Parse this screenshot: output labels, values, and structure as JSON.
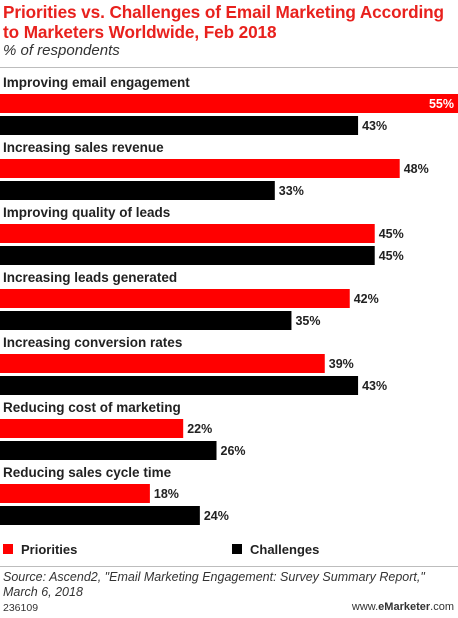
{
  "header": {
    "title": "Priorities vs. Challenges of Email Marketing According to Marketers Worldwide, Feb 2018",
    "subtitle": "% of respondents"
  },
  "legend": {
    "priorities_label": "Priorities",
    "challenges_label": "Challenges"
  },
  "footer": {
    "source": "Source: Ascend2, \"Email Marketing Engagement: Survey Summary Report,\" March 6, 2018",
    "chart_id": "236109",
    "brand_prefix": "www.",
    "brand_name": "eMarketer",
    "brand_suffix": ".com"
  },
  "colors": {
    "priorities": "#ff0000",
    "challenges": "#000000",
    "title": "#e8211d"
  },
  "chart_data": {
    "type": "bar",
    "orientation": "horizontal",
    "title": "Priorities vs. Challenges of Email Marketing According to Marketers Worldwide, Feb 2018",
    "subtitle": "% of respondents",
    "unit": "%",
    "xlim": [
      0,
      55
    ],
    "grid": false,
    "legend_position": "bottom",
    "categories": [
      "Improving email engagement",
      "Increasing sales revenue",
      "Improving quality of leads",
      "Increasing leads generated",
      "Increasing conversion rates",
      "Reducing cost of marketing",
      "Reducing sales cycle time"
    ],
    "series": [
      {
        "name": "Priorities",
        "color": "#ff0000",
        "values": [
          55,
          48,
          45,
          42,
          39,
          22,
          18
        ]
      },
      {
        "name": "Challenges",
        "color": "#000000",
        "values": [
          43,
          33,
          45,
          35,
          43,
          26,
          24
        ]
      }
    ]
  }
}
